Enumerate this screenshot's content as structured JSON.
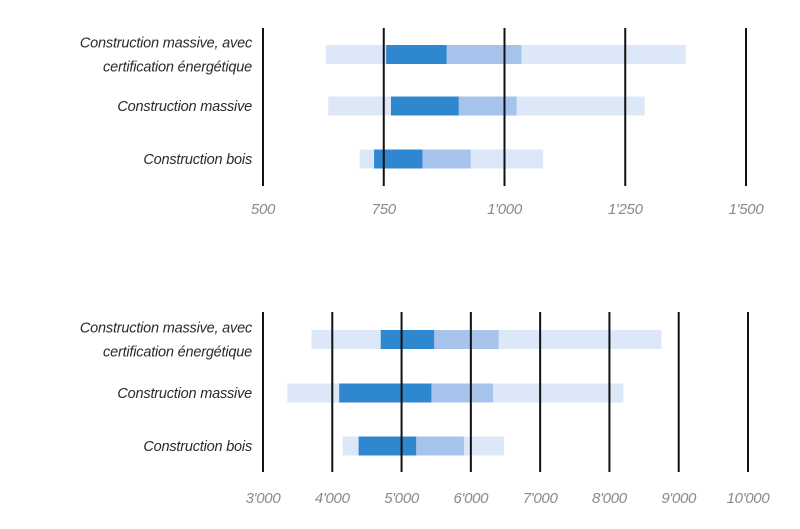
{
  "colors": {
    "range_full": "#dce8f7",
    "range_mid": "#a6c3ec",
    "range_core": "#2f88cf",
    "axis": "#111111",
    "category_text": "#2a2a2a",
    "tick_text": "#8a8a8a"
  },
  "chart_data": [
    {
      "type": "bar",
      "orientation": "horizontal",
      "categories": [
        [
          "Construction massive, avec",
          "certification énergétique"
        ],
        [
          "Construction massive"
        ],
        [
          "Construction bois"
        ]
      ],
      "ranges": [
        {
          "full": [
            630,
            1375
          ],
          "mid": [
            755,
            1035
          ],
          "core": [
            755,
            880
          ]
        },
        {
          "full": [
            635,
            1290
          ],
          "mid": [
            765,
            1025
          ],
          "core": [
            765,
            905
          ]
        },
        {
          "full": [
            700,
            1080
          ],
          "mid": [
            730,
            930
          ],
          "core": [
            730,
            830
          ]
        }
      ],
      "xlim": [
        500,
        1500
      ],
      "ticks": [
        500,
        750,
        1000,
        1250,
        1500
      ],
      "tick_labels": [
        "500",
        "750",
        "1'000",
        "1'250",
        "1'500"
      ],
      "grid": "vertical"
    },
    {
      "type": "bar",
      "orientation": "horizontal",
      "categories": [
        [
          "Construction massive, avec",
          "certification énergétique"
        ],
        [
          "Construction massive"
        ],
        [
          "Construction bois"
        ]
      ],
      "ranges": [
        {
          "full": [
            3700,
            8750
          ],
          "mid": [
            4700,
            6400
          ],
          "core": [
            4700,
            5470
          ]
        },
        {
          "full": [
            3350,
            8200
          ],
          "mid": [
            4100,
            6320
          ],
          "core": [
            4100,
            5430
          ]
        },
        {
          "full": [
            4150,
            6480
          ],
          "mid": [
            4380,
            5900
          ],
          "core": [
            4380,
            5210
          ]
        }
      ],
      "xlim": [
        3000,
        10000
      ],
      "ticks": [
        3000,
        4000,
        5000,
        6000,
        7000,
        8000,
        9000,
        10000
      ],
      "tick_labels": [
        "3'000",
        "4'000",
        "5'000",
        "6'000",
        "7'000",
        "8'000",
        "9'000",
        "10'000"
      ],
      "grid": "vertical"
    }
  ]
}
